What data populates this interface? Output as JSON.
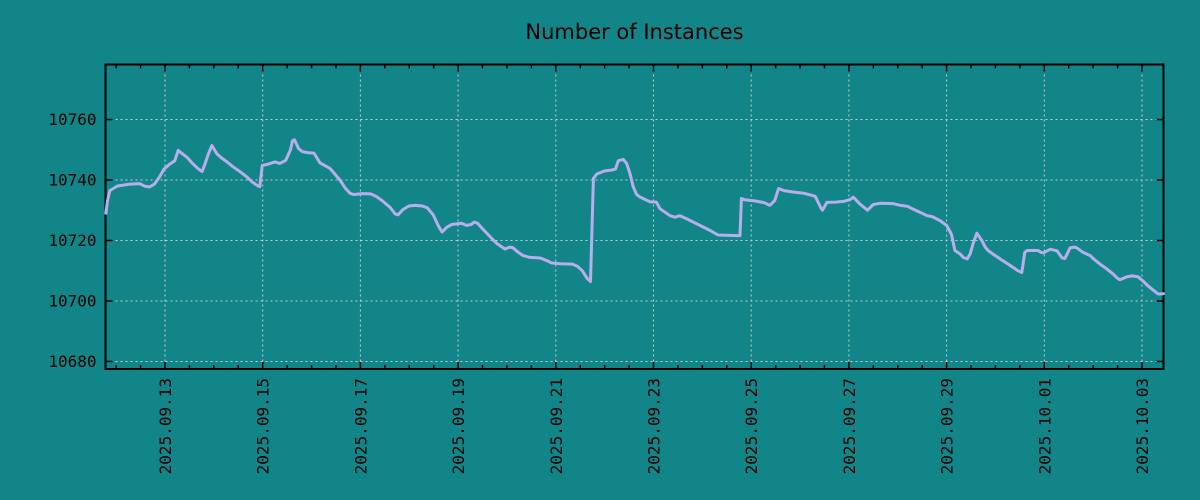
{
  "chart_data": {
    "type": "line",
    "title": "Number of Instances",
    "xlabel": "",
    "ylabel": "",
    "legend": "none",
    "grid": "dashed, at major ticks",
    "x_axis": {
      "unit": "days relative to 2025.09.13 00:00",
      "range_days": [
        -1.218,
        20.44
      ],
      "minor_tick_interval_days": 0.5,
      "major_ticks": [
        {
          "day": 0,
          "label": "2025.09.13"
        },
        {
          "day": 2,
          "label": "2025.09.15"
        },
        {
          "day": 4,
          "label": "2025.09.17"
        },
        {
          "day": 6,
          "label": "2025.09.19"
        },
        {
          "day": 8,
          "label": "2025.09.21"
        },
        {
          "day": 10,
          "label": "2025.09.23"
        },
        {
          "day": 12,
          "label": "2025.09.25"
        },
        {
          "day": 14,
          "label": "2025.09.27"
        },
        {
          "day": 16,
          "label": "2025.09.29"
        },
        {
          "day": 18,
          "label": "2025.10.01"
        },
        {
          "day": 20,
          "label": "2025.10.03"
        }
      ]
    },
    "y_axis": {
      "range": [
        10677.5,
        10778.2
      ],
      "ticks": [
        10680,
        10700,
        10720,
        10740,
        10760
      ]
    },
    "colors": {
      "background": "#128589",
      "line": "#b7aeeb",
      "grid": "#c6cecd",
      "axis": "#000000",
      "text": "#000000"
    },
    "series": [
      {
        "name": "instances",
        "points": [
          [
            -1.21,
            10729
          ],
          [
            -1.18,
            10733
          ],
          [
            -1.13,
            10736.5
          ],
          [
            -0.98,
            10738
          ],
          [
            -0.73,
            10738.6
          ],
          [
            -0.52,
            10738.8
          ],
          [
            -0.42,
            10738
          ],
          [
            -0.32,
            10737.7
          ],
          [
            -0.22,
            10738.6
          ],
          [
            -0.12,
            10740.8
          ],
          [
            -0.02,
            10743.6
          ],
          [
            0.1,
            10745.3
          ],
          [
            0.2,
            10746.4
          ],
          [
            0.27,
            10749.8
          ],
          [
            0.33,
            10749
          ],
          [
            0.45,
            10747.5
          ],
          [
            0.57,
            10745.4
          ],
          [
            0.68,
            10743.7
          ],
          [
            0.76,
            10742.8
          ],
          [
            0.82,
            10745.4
          ],
          [
            0.89,
            10748.7
          ],
          [
            0.96,
            10751.4
          ],
          [
            1.06,
            10748.7
          ],
          [
            1.17,
            10747.1
          ],
          [
            1.27,
            10746
          ],
          [
            1.39,
            10744.4
          ],
          [
            1.54,
            10742.7
          ],
          [
            1.67,
            10741.1
          ],
          [
            1.78,
            10739.4
          ],
          [
            1.88,
            10738.3
          ],
          [
            1.94,
            10737.8
          ],
          [
            1.99,
            10744.8
          ],
          [
            2.1,
            10745.2
          ],
          [
            2.25,
            10746
          ],
          [
            2.35,
            10745.5
          ],
          [
            2.47,
            10746.5
          ],
          [
            2.57,
            10750
          ],
          [
            2.61,
            10753
          ],
          [
            2.65,
            10753.3
          ],
          [
            2.73,
            10750.5
          ],
          [
            2.81,
            10749.4
          ],
          [
            2.93,
            10749
          ],
          [
            3.05,
            10748.9
          ],
          [
            3.17,
            10745.7
          ],
          [
            3.38,
            10743.8
          ],
          [
            3.58,
            10740
          ],
          [
            3.69,
            10737.3
          ],
          [
            3.79,
            10735.6
          ],
          [
            3.86,
            10735.2
          ],
          [
            4.05,
            10735.5
          ],
          [
            4.21,
            10735.4
          ],
          [
            4.34,
            10734.4
          ],
          [
            4.46,
            10733
          ],
          [
            4.61,
            10730.9
          ],
          [
            4.71,
            10728.8
          ],
          [
            4.77,
            10728.5
          ],
          [
            4.87,
            10730.2
          ],
          [
            4.99,
            10731.4
          ],
          [
            5.12,
            10731.6
          ],
          [
            5.27,
            10731.4
          ],
          [
            5.37,
            10730.8
          ],
          [
            5.49,
            10728.5
          ],
          [
            5.59,
            10725
          ],
          [
            5.67,
            10722.8
          ],
          [
            5.77,
            10724.4
          ],
          [
            5.87,
            10725.3
          ],
          [
            6.07,
            10725.7
          ],
          [
            6.17,
            10725
          ],
          [
            6.27,
            10725.3
          ],
          [
            6.33,
            10726.1
          ],
          [
            6.4,
            10725.7
          ],
          [
            6.5,
            10723.9
          ],
          [
            6.6,
            10722.2
          ],
          [
            6.7,
            10720.5
          ],
          [
            6.8,
            10718.9
          ],
          [
            6.9,
            10717.8
          ],
          [
            6.96,
            10717.2
          ],
          [
            7.06,
            10717.8
          ],
          [
            7.12,
            10717.6
          ],
          [
            7.23,
            10716.1
          ],
          [
            7.33,
            10715
          ],
          [
            7.47,
            10714.4
          ],
          [
            7.68,
            10714.2
          ],
          [
            7.82,
            10713.3
          ],
          [
            7.91,
            10712.6
          ],
          [
            8.09,
            10712.3
          ],
          [
            8.34,
            10712.2
          ],
          [
            8.44,
            10711.5
          ],
          [
            8.54,
            10710
          ],
          [
            8.64,
            10707.5
          ],
          [
            8.71,
            10706.4
          ],
          [
            8.77,
            10740.5
          ],
          [
            8.84,
            10742
          ],
          [
            9.0,
            10743
          ],
          [
            9.15,
            10743.3
          ],
          [
            9.22,
            10743.6
          ],
          [
            9.28,
            10746.4
          ],
          [
            9.38,
            10746.8
          ],
          [
            9.45,
            10745.5
          ],
          [
            9.52,
            10742
          ],
          [
            9.58,
            10738
          ],
          [
            9.65,
            10735.3
          ],
          [
            9.72,
            10734.4
          ],
          [
            9.85,
            10733.4
          ],
          [
            9.93,
            10732.8
          ],
          [
            10.06,
            10732.7
          ],
          [
            10.13,
            10730.5
          ],
          [
            10.34,
            10728.2
          ],
          [
            10.44,
            10727.7
          ],
          [
            10.54,
            10728.2
          ],
          [
            10.65,
            10727.4
          ],
          [
            10.75,
            10726.6
          ],
          [
            10.95,
            10725
          ],
          [
            11.16,
            10723.3
          ],
          [
            11.32,
            10721.8
          ],
          [
            11.71,
            10721.6
          ],
          [
            11.77,
            10721.6
          ],
          [
            11.8,
            10733.9
          ],
          [
            11.86,
            10733.5
          ],
          [
            12.07,
            10733.1
          ],
          [
            12.27,
            10732.5
          ],
          [
            12.38,
            10731.6
          ],
          [
            12.48,
            10733.2
          ],
          [
            12.56,
            10737.2
          ],
          [
            12.67,
            10736.5
          ],
          [
            12.87,
            10736
          ],
          [
            13.08,
            10735.6
          ],
          [
            13.22,
            10735
          ],
          [
            13.31,
            10734.6
          ],
          [
            13.43,
            10730.6
          ],
          [
            13.46,
            10730
          ],
          [
            13.55,
            10732.6
          ],
          [
            13.73,
            10732.7
          ],
          [
            13.91,
            10733
          ],
          [
            14.03,
            10733.6
          ],
          [
            14.09,
            10734.3
          ],
          [
            14.23,
            10732
          ],
          [
            14.38,
            10730
          ],
          [
            14.5,
            10731.9
          ],
          [
            14.64,
            10732.3
          ],
          [
            14.9,
            10732.2
          ],
          [
            15.06,
            10731.6
          ],
          [
            15.2,
            10731.3
          ],
          [
            15.32,
            10730.3
          ],
          [
            15.46,
            10729.3
          ],
          [
            15.6,
            10728.2
          ],
          [
            15.72,
            10727.8
          ],
          [
            15.86,
            10726.6
          ],
          [
            16.0,
            10725
          ],
          [
            16.1,
            10722
          ],
          [
            16.17,
            10716.7
          ],
          [
            16.28,
            10715.5
          ],
          [
            16.34,
            10714.4
          ],
          [
            16.42,
            10713.9
          ],
          [
            16.48,
            10715.5
          ],
          [
            16.54,
            10718.9
          ],
          [
            16.62,
            10722.4
          ],
          [
            16.72,
            10720
          ],
          [
            16.79,
            10717.8
          ],
          [
            16.85,
            10716.7
          ],
          [
            16.95,
            10715.5
          ],
          [
            17.05,
            10714.4
          ],
          [
            17.15,
            10713.3
          ],
          [
            17.26,
            10712.2
          ],
          [
            17.36,
            10711.1
          ],
          [
            17.46,
            10710
          ],
          [
            17.54,
            10709.4
          ],
          [
            17.6,
            10716.1
          ],
          [
            17.65,
            10716.7
          ],
          [
            17.87,
            10716.7
          ],
          [
            17.93,
            10716.1
          ],
          [
            17.98,
            10715.9
          ],
          [
            18.06,
            10716.6
          ],
          [
            18.12,
            10717.1
          ],
          [
            18.26,
            10716.6
          ],
          [
            18.36,
            10714.3
          ],
          [
            18.42,
            10714
          ],
          [
            18.53,
            10717.6
          ],
          [
            18.63,
            10717.8
          ],
          [
            18.69,
            10717.3
          ],
          [
            18.79,
            10716.1
          ],
          [
            18.94,
            10715
          ],
          [
            19.0,
            10714
          ],
          [
            19.14,
            10712.2
          ],
          [
            19.28,
            10710.6
          ],
          [
            19.41,
            10708.9
          ],
          [
            19.49,
            10707.6
          ],
          [
            19.55,
            10707
          ],
          [
            19.69,
            10708
          ],
          [
            19.8,
            10708.3
          ],
          [
            19.92,
            10708
          ],
          [
            20.02,
            10706.6
          ],
          [
            20.12,
            10705
          ],
          [
            20.23,
            10703.6
          ],
          [
            20.33,
            10702.3
          ],
          [
            20.45,
            10702.4
          ]
        ]
      }
    ]
  }
}
